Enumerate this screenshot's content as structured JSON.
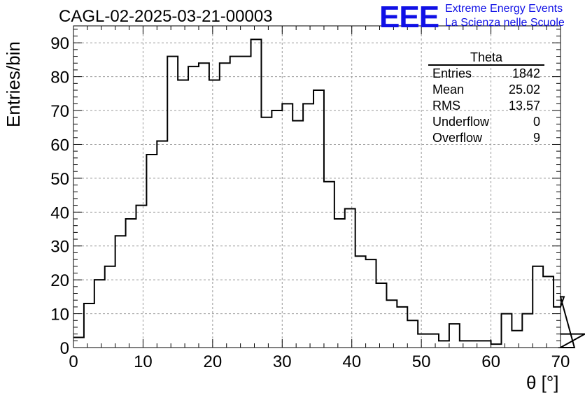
{
  "header": {
    "title": "CAGL-02-2025-03-21-00003",
    "logo_mark": "EEE",
    "logo_line1": "Extreme Energy Events",
    "logo_line2": "La Scienza nelle Scuole"
  },
  "stats": {
    "name": "Theta",
    "rows": [
      {
        "label": "Entries",
        "value": "1842"
      },
      {
        "label": "Mean",
        "value": "25.02"
      },
      {
        "label": "RMS",
        "value": "13.57"
      },
      {
        "label": "Underflow",
        "value": "0"
      },
      {
        "label": "Overflow",
        "value": "9"
      }
    ]
  },
  "colors": {
    "line": "#000000",
    "grid": "#999999",
    "logo": "#1010e6"
  },
  "chart_data": {
    "type": "histogram",
    "title": "CAGL-02-2025-03-21-00003",
    "xlabel": "θ [°]",
    "ylabel": "Entries/bin",
    "bin_width": 1.5,
    "x_start": 0,
    "values": [
      3,
      13,
      20,
      24,
      33,
      38,
      42,
      57,
      61,
      86,
      79,
      83,
      84,
      79,
      84,
      86,
      86,
      91,
      68,
      70,
      72,
      67,
      72,
      76,
      49,
      38,
      41,
      27,
      26,
      19,
      14,
      12,
      8,
      4,
      4,
      2,
      7,
      2,
      2,
      2,
      1,
      10,
      5,
      10,
      24,
      21,
      12,
      15,
      0,
      4
    ],
    "xlim": [
      0,
      70
    ],
    "ylim": [
      0,
      95
    ],
    "xticks": [
      0,
      10,
      20,
      30,
      40,
      50,
      60,
      70
    ],
    "yticks": [
      0,
      10,
      20,
      30,
      40,
      50,
      60,
      70,
      80,
      90
    ],
    "grid": true
  }
}
